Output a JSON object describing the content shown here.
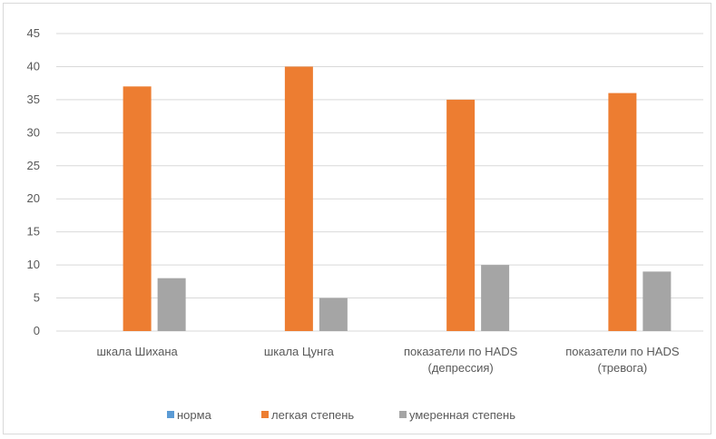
{
  "chart_data": {
    "type": "bar",
    "title": "",
    "xlabel": "",
    "ylabel": "",
    "ylim": [
      0,
      45
    ],
    "yticks": [
      0,
      5,
      10,
      15,
      20,
      25,
      30,
      35,
      40,
      45
    ],
    "grid": true,
    "legend_position": "bottom",
    "categories": [
      [
        "шкала Шихана"
      ],
      [
        "шкала Цунга"
      ],
      [
        "показатели по HADS",
        "(депрессия)"
      ],
      [
        "показатели по HADS",
        "(тревога)"
      ]
    ],
    "series": [
      {
        "name": "норма",
        "color": "#5b9bd5",
        "values": [
          0,
          0,
          0,
          0
        ]
      },
      {
        "name": "легкая степень",
        "color": "#ed7d31",
        "values": [
          37,
          40,
          35,
          36
        ]
      },
      {
        "name": "умеренная степень",
        "color": "#a5a5a5",
        "values": [
          8,
          5,
          10,
          9
        ]
      }
    ]
  }
}
